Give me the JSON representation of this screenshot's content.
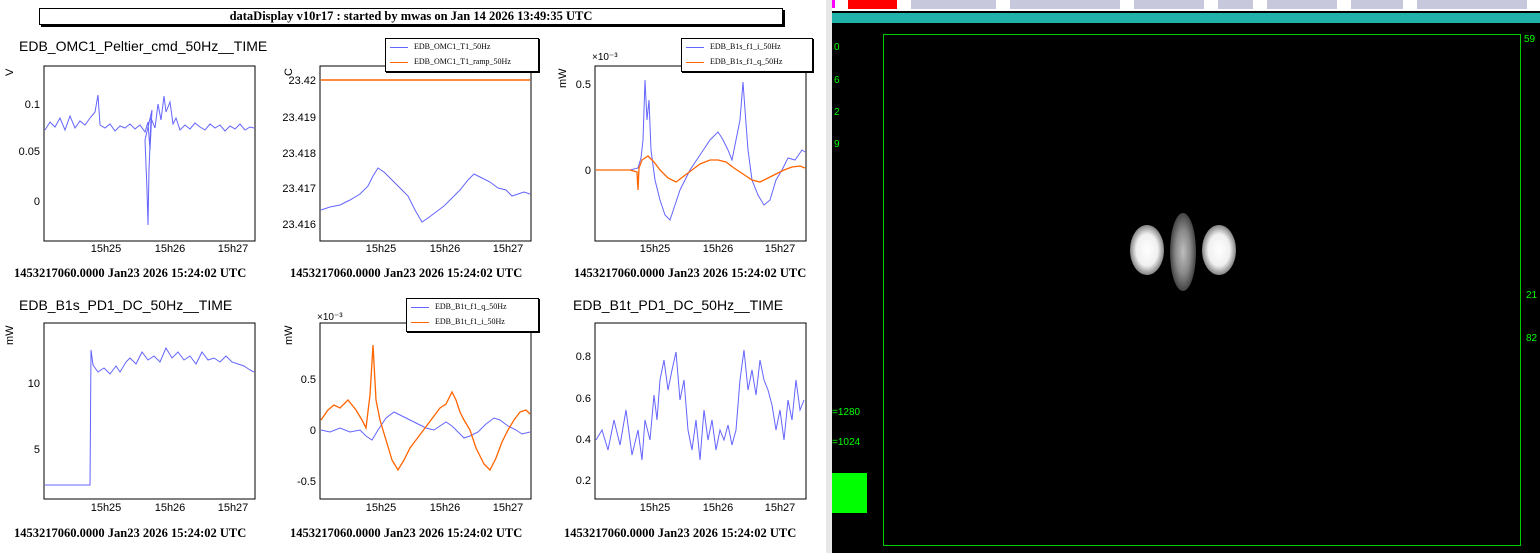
{
  "window_title": "dataDisplay v10r17 : started by mwas on Jan 14 2026 13:49:35 UTC",
  "panels": [
    {
      "title": "EDB_OMC1_Peltier_cmd_50Hz__TIME",
      "ylabel": "V",
      "yticks": [
        "0.1",
        "0.05",
        "0"
      ],
      "xticks": [
        "15h25",
        "15h26",
        "15h27"
      ],
      "footer": "1453217060.0000 Jan23 2026 15:24:02 UTC",
      "exponent": ""
    },
    {
      "title": "",
      "ylabel": "C",
      "yticks": [
        "23.42",
        "23.419",
        "23.418",
        "23.417",
        "23.416"
      ],
      "xticks": [
        "15h25",
        "15h26",
        "15h27"
      ],
      "footer": "1453217060.0000 Jan23 2026 15:24:02 UTC",
      "exponent": "",
      "legend": [
        {
          "label": "EDB_OMC1_T1_50Hz",
          "color": "#6464ff"
        },
        {
          "label": "EDB_OMC1_T1_ramp_50Hz",
          "color": "#ff6400"
        }
      ]
    },
    {
      "title": "",
      "ylabel": "mW",
      "yticks": [
        "0.5",
        "0"
      ],
      "xticks": [
        "15h25",
        "15h26",
        "15h27"
      ],
      "footer": "1453217060.0000 Jan23 2026 15:24:02 UTC",
      "exponent": "×10⁻³",
      "legend": [
        {
          "label": "EDB_B1s_f1_i_50Hz",
          "color": "#6464ff"
        },
        {
          "label": "EDB_B1s_f1_q_50Hz",
          "color": "#ff6400"
        }
      ]
    },
    {
      "title": "EDB_B1s_PD1_DC_50Hz__TIME",
      "ylabel": "mW",
      "yticks": [
        "10",
        "5"
      ],
      "xticks": [
        "15h25",
        "15h26",
        "15h27"
      ],
      "footer": "1453217060.0000 Jan23 2026 15:24:02 UTC",
      "exponent": ""
    },
    {
      "title": "",
      "ylabel": "mW",
      "yticks": [
        "0.5",
        "0",
        "-0.5"
      ],
      "xticks": [
        "15h25",
        "15h26",
        "15h27"
      ],
      "footer": "1453217060.0000 Jan23 2026 15:24:02 UTC",
      "exponent": "×10⁻³",
      "legend": [
        {
          "label": "EDB_B1t_f1_q_50Hz",
          "color": "#6464ff"
        },
        {
          "label": "EDB_B1t_f1_i_50Hz",
          "color": "#ff6400"
        }
      ]
    },
    {
      "title": "EDB_B1t_PD1_DC_50Hz__TIME",
      "ylabel": "mW",
      "yticks": [
        "0.8",
        "0.6",
        "0.4",
        "0.2"
      ],
      "xticks": [
        "15h25",
        "15h26",
        "15h27"
      ],
      "footer": "1453217060.0000 Jan23 2026 15:24:02 UTC",
      "exponent": ""
    }
  ],
  "camera": {
    "left_labels": [
      "0",
      "6",
      "2",
      "9",
      "=1280",
      "=1024"
    ],
    "right_labels": [
      "59",
      "21",
      "82"
    ],
    "colors": {
      "frame": "#00cc00",
      "text": "#00ff00",
      "teal": "#20b2aa",
      "red_button": "#ff0000"
    }
  },
  "colors": {
    "series_blue": "#6464ff",
    "series_orange": "#ff6400"
  }
}
